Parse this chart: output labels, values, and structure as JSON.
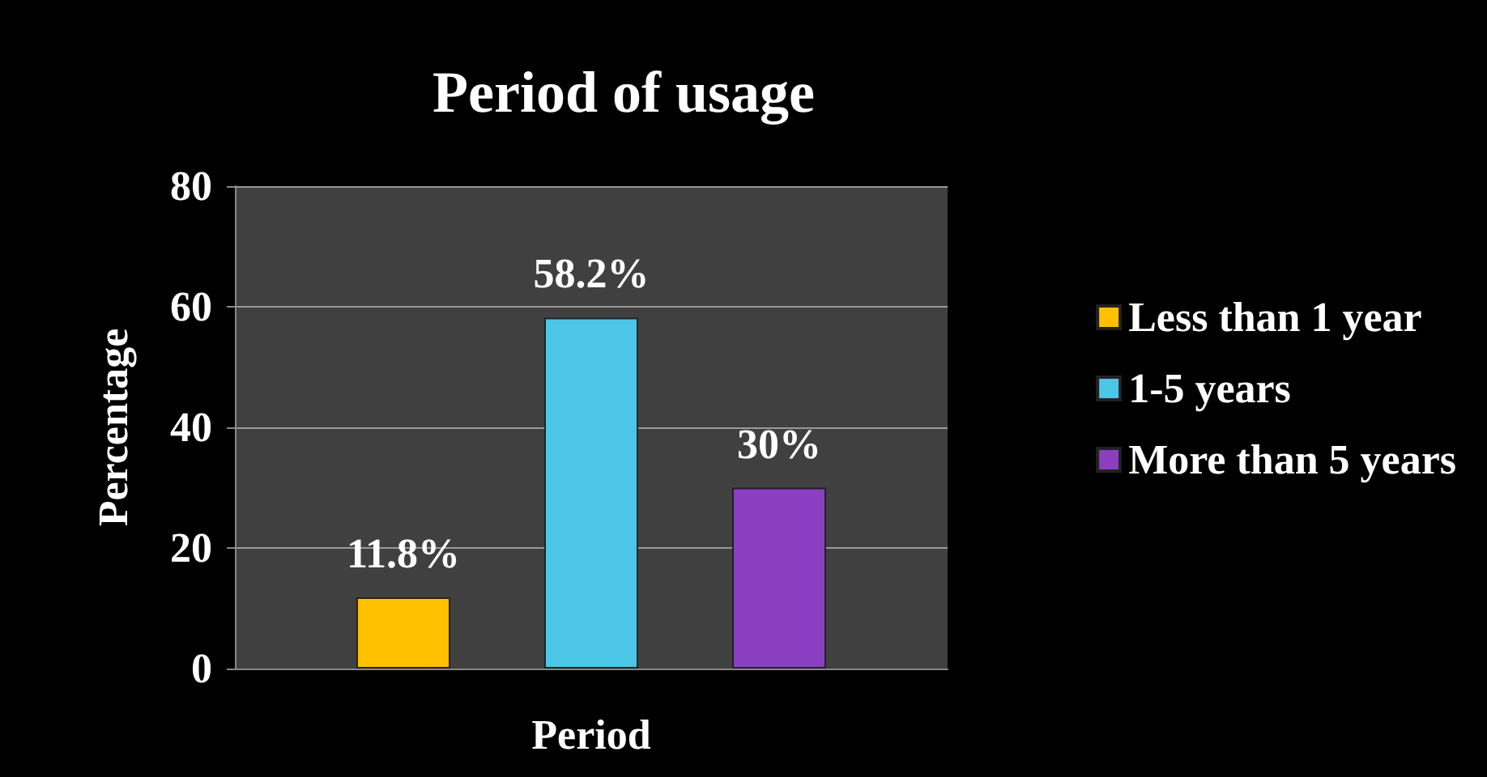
{
  "chart_data": {
    "type": "bar",
    "title": "Period of usage",
    "xlabel": "Period",
    "ylabel": "Percentage",
    "categories": [
      null
    ],
    "series": [
      {
        "name": "Less than 1 year",
        "color": "#ffc000",
        "values": [
          11.8
        ],
        "value_labels": [
          "11.8%"
        ]
      },
      {
        "name": "1-5 years",
        "color": "#4bc6e6",
        "values": [
          58.2
        ],
        "value_labels": [
          "58.2%"
        ]
      },
      {
        "name": "More than 5 years",
        "color": "#8a3fc0",
        "values": [
          30
        ],
        "value_labels": [
          "30%"
        ]
      }
    ],
    "ylim": [
      0,
      80
    ],
    "yticks": [
      0,
      20,
      40,
      60,
      80
    ],
    "grid": "y",
    "legend": "right"
  }
}
